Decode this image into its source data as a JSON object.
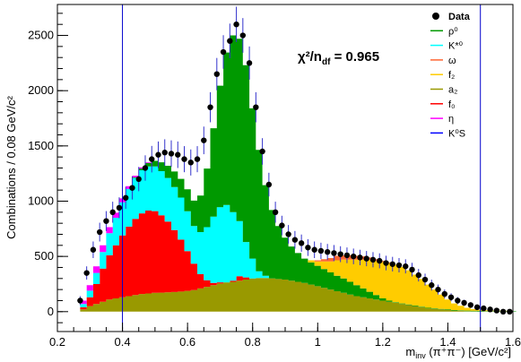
{
  "chart_data": {
    "type": "area",
    "stacked": true,
    "xlabel_main": "m",
    "xlabel_sub": "inv",
    "xlabel_rest": " (π⁺π⁻) [GeV/c²]",
    "ylabel": "Combinations / 0.08 GeV/c²",
    "xlim": [
      0.2,
      1.6
    ],
    "ylim": [
      -180,
      2780
    ],
    "x_ticks": [
      "0.2",
      "0.4",
      "0.6",
      "0.8",
      "1",
      "1.2",
      "1.4",
      "1.6"
    ],
    "x_tick_values": [
      0.2,
      0.4,
      0.6,
      0.8,
      1.0,
      1.2,
      1.4,
      1.6
    ],
    "y_ticks": [
      "0",
      "500",
      "1000",
      "1500",
      "2000",
      "2500"
    ],
    "y_tick_values": [
      0,
      500,
      1000,
      1500,
      2000,
      2500
    ],
    "annotation_main": "χ²/n",
    "annotation_sub": "df",
    "annotation_rest": " = 0.965",
    "vertical_lines": [
      0.4,
      1.5
    ],
    "x": [
      0.26,
      0.28,
      0.3,
      0.32,
      0.34,
      0.36,
      0.38,
      0.4,
      0.42,
      0.44,
      0.46,
      0.48,
      0.5,
      0.52,
      0.54,
      0.56,
      0.58,
      0.6,
      0.62,
      0.64,
      0.66,
      0.68,
      0.7,
      0.72,
      0.74,
      0.76,
      0.78,
      0.8,
      0.82,
      0.84,
      0.86,
      0.88,
      0.9,
      0.92,
      0.94,
      0.96,
      0.98,
      1.0,
      1.02,
      1.04,
      1.06,
      1.08,
      1.1,
      1.12,
      1.14,
      1.16,
      1.18,
      1.2,
      1.22,
      1.24,
      1.26,
      1.28,
      1.3,
      1.32,
      1.34,
      1.36,
      1.38,
      1.4,
      1.42,
      1.44,
      1.46,
      1.48,
      1.5,
      1.52,
      1.54,
      1.56,
      1.58,
      1.6
    ],
    "series": [
      {
        "name": "a2",
        "color": "#999900",
        "values": [
          0,
          20,
          50,
          70,
          90,
          110,
          120,
          130,
          140,
          150,
          160,
          165,
          170,
          172,
          175,
          178,
          182,
          188,
          195,
          210,
          225,
          240,
          255,
          265,
          270,
          280,
          290,
          300,
          305,
          305,
          300,
          295,
          290,
          280,
          270,
          260,
          245,
          230,
          215,
          200,
          185,
          170,
          155,
          140,
          130,
          120,
          110,
          100,
          90,
          80,
          70,
          60,
          50,
          40,
          30,
          25,
          20,
          15,
          10,
          8,
          5,
          3,
          2,
          0,
          0,
          0,
          0,
          0
        ]
      },
      {
        "name": "f0",
        "color": "#ff0000",
        "values": [
          0,
          20,
          80,
          180,
          300,
          400,
          480,
          560,
          630,
          690,
          730,
          750,
          740,
          700,
          640,
          560,
          470,
          360,
          240,
          130,
          60,
          20,
          10,
          0,
          10,
          40,
          20,
          0,
          0,
          0,
          0,
          0,
          0,
          0,
          0,
          0,
          0,
          0,
          0,
          0,
          0,
          0,
          0,
          0,
          0,
          0,
          0,
          0,
          0,
          0,
          0,
          0,
          0,
          0,
          0,
          0,
          0,
          0,
          0,
          0,
          0,
          0,
          0,
          0,
          0,
          0,
          0,
          0
        ]
      },
      {
        "name": "K*0",
        "color": "#00ffff",
        "values": [
          0,
          30,
          60,
          100,
          150,
          200,
          250,
          300,
          340,
          370,
          390,
          400,
          405,
          400,
          395,
          390,
          380,
          360,
          340,
          380,
          480,
          600,
          680,
          700,
          620,
          500,
          320,
          180,
          60,
          20,
          0,
          0,
          0,
          0,
          0,
          0,
          0,
          0,
          0,
          0,
          0,
          0,
          0,
          0,
          0,
          0,
          0,
          0,
          0,
          0,
          0,
          0,
          0,
          0,
          0,
          0,
          0,
          0,
          0,
          0,
          0,
          0,
          0,
          0,
          0,
          0,
          0,
          0
        ]
      },
      {
        "name": "ρ0",
        "color": "#009900",
        "values": [
          0,
          0,
          0,
          0,
          0,
          0,
          0,
          0,
          0,
          5,
          15,
          30,
          50,
          80,
          110,
          140,
          170,
          200,
          230,
          330,
          530,
          800,
          1100,
          1380,
          1600,
          1650,
          1600,
          1360,
          1100,
          820,
          620,
          480,
          380,
          310,
          260,
          220,
          200,
          185,
          170,
          155,
          140,
          130,
          115,
          100,
          80,
          60,
          40,
          20,
          10,
          5,
          5,
          5,
          5,
          5,
          5,
          5,
          5,
          5,
          5,
          5,
          5,
          5,
          5,
          5,
          5,
          5,
          5,
          5
        ]
      },
      {
        "name": "f2",
        "color": "#ffcc00",
        "values": [
          0,
          0,
          0,
          0,
          0,
          0,
          0,
          0,
          0,
          0,
          0,
          0,
          0,
          0,
          0,
          0,
          0,
          0,
          0,
          0,
          0,
          0,
          0,
          0,
          0,
          0,
          0,
          0,
          0,
          0,
          0,
          0,
          0,
          0,
          0,
          0,
          20,
          40,
          70,
          100,
          140,
          170,
          200,
          230,
          260,
          290,
          310,
          330,
          340,
          340,
          330,
          310,
          280,
          250,
          210,
          170,
          130,
          90,
          60,
          40,
          25,
          15,
          10,
          8,
          5,
          3,
          2,
          0
        ]
      },
      {
        "name": "ω",
        "color": "#ff6633",
        "values": [
          0,
          0,
          0,
          0,
          0,
          0,
          0,
          0,
          0,
          0,
          0,
          0,
          0,
          0,
          0,
          0,
          0,
          0,
          0,
          0,
          0,
          0,
          0,
          0,
          0,
          0,
          0,
          0,
          0,
          0,
          0,
          0,
          0,
          0,
          0,
          0,
          0,
          10,
          20,
          30,
          40,
          40,
          40,
          35,
          30,
          20,
          15,
          10,
          5,
          0,
          0,
          0,
          0,
          0,
          0,
          0,
          0,
          0,
          0,
          0,
          0,
          0,
          0,
          0,
          0,
          0,
          0,
          0
        ]
      },
      {
        "name": "η",
        "color": "#ff00ff",
        "values": [
          0,
          30,
          50,
          60,
          60,
          55,
          45,
          35,
          25,
          15,
          10,
          5,
          0,
          0,
          0,
          0,
          0,
          0,
          0,
          0,
          0,
          0,
          0,
          0,
          0,
          0,
          0,
          0,
          0,
          0,
          0,
          0,
          0,
          0,
          0,
          0,
          0,
          0,
          0,
          0,
          0,
          0,
          0,
          0,
          0,
          0,
          0,
          0,
          0,
          0,
          0,
          0,
          0,
          0,
          0,
          0,
          0,
          0,
          0,
          0,
          0,
          0,
          0,
          0,
          0,
          0,
          0,
          0
        ]
      },
      {
        "name": "K0S",
        "color": "#0000ff",
        "values": [
          0,
          0,
          0,
          0,
          0,
          0,
          0,
          0,
          0,
          0,
          0,
          0,
          0,
          0,
          0,
          0,
          0,
          0,
          0,
          0,
          0,
          0,
          0,
          0,
          0,
          0,
          0,
          0,
          0,
          0,
          0,
          0,
          0,
          0,
          0,
          0,
          0,
          0,
          0,
          0,
          0,
          0,
          0,
          0,
          0,
          0,
          0,
          0,
          0,
          0,
          0,
          0,
          0,
          0,
          0,
          0,
          0,
          0,
          0,
          0,
          0,
          0,
          0,
          0,
          0,
          0,
          0,
          0
        ]
      }
    ],
    "data_points": {
      "name": "Data",
      "x": [
        0.27,
        0.29,
        0.31,
        0.33,
        0.35,
        0.37,
        0.39,
        0.41,
        0.43,
        0.45,
        0.47,
        0.49,
        0.51,
        0.53,
        0.55,
        0.57,
        0.59,
        0.61,
        0.63,
        0.65,
        0.67,
        0.69,
        0.71,
        0.73,
        0.75,
        0.77,
        0.79,
        0.81,
        0.83,
        0.85,
        0.87,
        0.89,
        0.91,
        0.93,
        0.95,
        0.97,
        0.99,
        1.01,
        1.03,
        1.05,
        1.07,
        1.09,
        1.11,
        1.13,
        1.15,
        1.17,
        1.19,
        1.21,
        1.23,
        1.25,
        1.27,
        1.29,
        1.31,
        1.33,
        1.35,
        1.37,
        1.39,
        1.41,
        1.43,
        1.45,
        1.47,
        1.49,
        1.51,
        1.53,
        1.55,
        1.57,
        1.59
      ],
      "y": [
        100,
        350,
        560,
        720,
        820,
        900,
        940,
        1030,
        1120,
        1200,
        1300,
        1380,
        1420,
        1440,
        1430,
        1420,
        1380,
        1350,
        1380,
        1550,
        1850,
        2150,
        2350,
        2450,
        2600,
        2500,
        2250,
        1850,
        1450,
        1150,
        900,
        780,
        700,
        650,
        620,
        580,
        560,
        550,
        540,
        530,
        520,
        510,
        500,
        490,
        480,
        470,
        460,
        440,
        430,
        420,
        410,
        380,
        330,
        290,
        240,
        200,
        160,
        130,
        100,
        80,
        60,
        40,
        30,
        20,
        10,
        0,
        0
      ],
      "err": [
        40,
        60,
        75,
        85,
        90,
        95,
        95,
        100,
        105,
        110,
        115,
        120,
        120,
        120,
        120,
        120,
        118,
        118,
        118,
        125,
        136,
        146,
        152,
        157,
        160,
        157,
        150,
        136,
        120,
        107,
        95,
        88,
        84,
        80,
        78,
        76,
        75,
        74,
        73,
        73,
        72,
        71,
        71,
        70,
        69,
        69,
        68,
        66,
        66,
        65,
        64,
        62,
        57,
        54,
        49,
        45,
        40,
        36,
        32,
        28,
        25,
        20,
        17,
        14,
        10,
        10,
        10
      ]
    },
    "legend": [
      {
        "label": "Data",
        "kind": "marker",
        "color": "#000000"
      },
      {
        "label": "ρ⁰",
        "kind": "fill",
        "color": "#009900"
      },
      {
        "label": "K*⁰",
        "kind": "fill",
        "color": "#00ffff"
      },
      {
        "label": "ω",
        "kind": "fill",
        "color": "#ff6633"
      },
      {
        "label": "f₂",
        "kind": "fill",
        "color": "#ffcc00"
      },
      {
        "label": "a₂",
        "kind": "fill",
        "color": "#999900"
      },
      {
        "label": "f₀",
        "kind": "fill",
        "color": "#ff0000"
      },
      {
        "label": "η",
        "kind": "fill",
        "color": "#ff00ff"
      },
      {
        "label": "K⁰S",
        "kind": "fill",
        "color": "#0000ff"
      }
    ],
    "legend_position": "top-right"
  }
}
